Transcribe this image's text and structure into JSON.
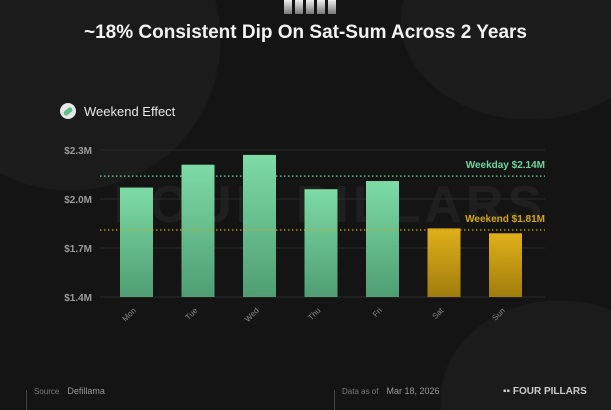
{
  "title": "~18% Consistent Dip On Sat-Sum Across 2 Years",
  "subtitle": "Weekend Effect",
  "watermark": "FOUR PILLARS",
  "footer": {
    "source_label": "Source",
    "source_value": "Defillama",
    "date_label": "Data as of",
    "date_value": "Mar 18, 2026",
    "brand": "FOUR PILLARS"
  },
  "colors": {
    "weekday": "#6fd39c",
    "weekend": "#d4a514",
    "background": "#141414"
  },
  "chart_data": {
    "type": "bar",
    "title": "Weekend Effect",
    "categories": [
      "Mon",
      "Tue",
      "Wed",
      "Thu",
      "Fri",
      "Sat",
      "Sun"
    ],
    "values": [
      2.07,
      2.21,
      2.27,
      2.06,
      2.11,
      1.82,
      1.79
    ],
    "unit": "$M",
    "groups": [
      "weekday",
      "weekday",
      "weekday",
      "weekday",
      "weekday",
      "weekend",
      "weekend"
    ],
    "ylim": [
      1.4,
      2.3
    ],
    "yticks": [
      1.4,
      1.7,
      2.0,
      2.3
    ],
    "ytick_labels": [
      "$1.4M",
      "$1.7M",
      "$2.0M",
      "$2.3M"
    ],
    "grid": true,
    "reference_lines": [
      {
        "label": "Weekday $2.14M",
        "value": 2.14,
        "group": "weekday"
      },
      {
        "label": "Weekend $1.81M",
        "value": 1.81,
        "group": "weekend"
      }
    ]
  }
}
